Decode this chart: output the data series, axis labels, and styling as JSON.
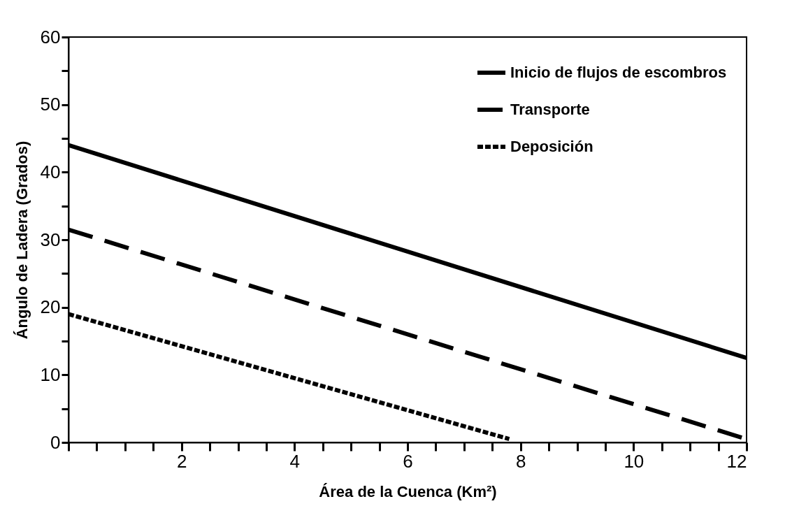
{
  "chart_data": {
    "type": "line",
    "xlabel": "Área de la Cuenca (Km²)",
    "ylabel": "Ángulo de Ladera (Grados)",
    "xlim": [
      0,
      12
    ],
    "ylim": [
      0,
      60
    ],
    "xticks": [
      {
        "value": 0,
        "label": null
      },
      {
        "value": 0.5,
        "label": null
      },
      {
        "value": 1,
        "label": null
      },
      {
        "value": 1.5,
        "label": null
      },
      2,
      {
        "value": 2.5,
        "label": null
      },
      {
        "value": 3,
        "label": null
      },
      {
        "value": 3.5,
        "label": null
      },
      4,
      {
        "value": 4.5,
        "label": null
      },
      {
        "value": 5,
        "label": null
      },
      {
        "value": 5.5,
        "label": null
      },
      6,
      {
        "value": 6.5,
        "label": null
      },
      {
        "value": 7,
        "label": null
      },
      {
        "value": 7.5,
        "label": null
      },
      8,
      {
        "value": 8.5,
        "label": null
      },
      {
        "value": 9,
        "label": null
      },
      {
        "value": 9.5,
        "label": null
      },
      10,
      {
        "value": 10.5,
        "label": null
      },
      {
        "value": 11,
        "label": null
      },
      {
        "value": 11.5,
        "label": null
      },
      12
    ],
    "yticks": [
      0,
      {
        "value": 5,
        "label": null
      },
      10,
      {
        "value": 15,
        "label": null
      },
      20,
      {
        "value": 25,
        "label": null
      },
      30,
      {
        "value": 35,
        "label": null
      },
      40,
      {
        "value": 45,
        "label": null
      },
      50,
      {
        "value": 55,
        "label": null
      },
      60
    ],
    "grid": false,
    "legend": "top right",
    "marker": "none",
    "series": [
      {
        "name": "Inicio de flujos de escombros",
        "color": "#000000",
        "line_style": "solid",
        "x": [
          0,
          12
        ],
        "values": [
          44,
          12.5
        ]
      },
      {
        "name": "Transporte",
        "color": "#000000",
        "line_style": "dashed",
        "x": [
          0,
          12
        ],
        "values": [
          31.5,
          0.5
        ]
      },
      {
        "name": "Deposición",
        "color": "#000000",
        "line_style": "dotted",
        "x": [
          0,
          7.8
        ],
        "values": [
          19,
          0.5
        ]
      }
    ]
  }
}
